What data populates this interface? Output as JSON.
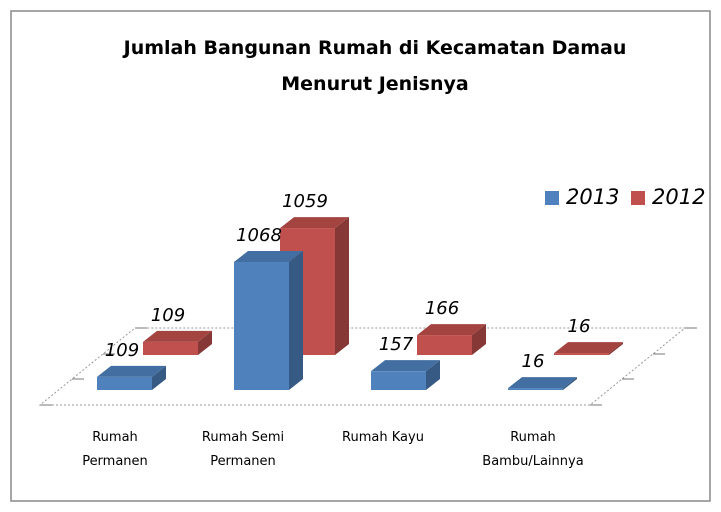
{
  "chart_data": {
    "type": "bar3d",
    "title": "Jumlah Bangunan Rumah di Kecamatan Damau Menurut Jenisnya",
    "categories": [
      "Rumah Permanen",
      "Rumah Semi Permanen",
      "Rumah Kayu",
      "Rumah Bambu/Lainnya"
    ],
    "series": [
      {
        "name": "2013",
        "color": "#4f81bd",
        "values": [
          109,
          1068,
          157,
          16
        ]
      },
      {
        "name": "2012",
        "color": "#c0504d",
        "values": [
          109,
          1059,
          166,
          16
        ]
      }
    ],
    "legend": "top-right"
  }
}
